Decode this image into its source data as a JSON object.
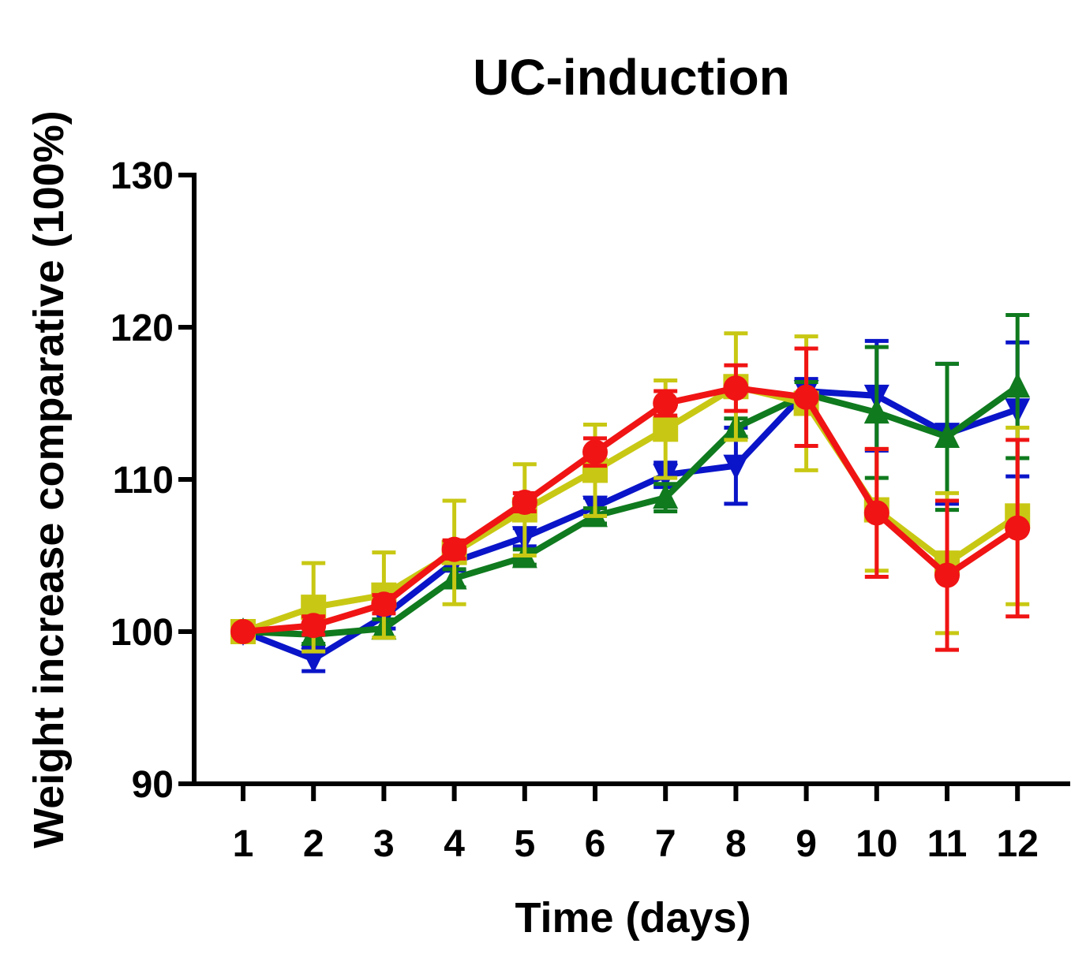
{
  "chart_data": {
    "type": "line",
    "title": "UC-induction",
    "xlabel": "Time (days)",
    "ylabel": "Weight increase comparative  (100%)",
    "x": [
      1,
      2,
      3,
      4,
      5,
      6,
      7,
      8,
      9,
      10,
      11,
      12
    ],
    "x_ticks": [
      "1",
      "2",
      "3",
      "4",
      "5",
      "6",
      "7",
      "8",
      "9",
      "10",
      "11",
      "12"
    ],
    "ylim": [
      90,
      130
    ],
    "y_ticks": [
      "90",
      "100",
      "110",
      "120",
      "130"
    ],
    "grid": false,
    "legend": false,
    "series": [
      {
        "color": "#0a14c8",
        "marker": "triangle-down",
        "values": [
          100,
          98.2,
          101.0,
          104.6,
          106.2,
          108.2,
          110.3,
          110.9,
          115.8,
          115.5,
          113.0,
          114.6
        ],
        "errors": [
          0.2,
          0.8,
          0.8,
          0.6,
          0.6,
          0.6,
          0.8,
          2.5,
          0.8,
          3.6,
          4.6,
          4.4
        ]
      },
      {
        "color": "#0f7a1e",
        "marker": "triangle-up",
        "values": [
          100,
          99.8,
          100.2,
          103.5,
          104.9,
          107.6,
          108.8,
          113.4,
          115.6,
          114.4,
          112.8,
          116.1
        ],
        "errors": [
          0.2,
          0.6,
          0.6,
          0.6,
          0.5,
          0.5,
          0.9,
          0.6,
          0.8,
          4.3,
          4.8,
          4.7
        ]
      },
      {
        "color": "#c8c814",
        "marker": "square",
        "values": [
          100,
          101.6,
          102.4,
          105.2,
          108.0,
          110.6,
          113.3,
          116.1,
          115.0,
          108.0,
          104.5,
          107.6
        ],
        "errors": [
          0.2,
          2.9,
          2.8,
          3.4,
          3.0,
          3.0,
          3.2,
          3.5,
          4.4,
          4.0,
          4.6,
          5.8
        ]
      },
      {
        "color": "#f01414",
        "marker": "circle",
        "values": [
          100,
          100.4,
          101.8,
          105.4,
          108.5,
          111.8,
          115.0,
          116.0,
          115.4,
          107.8,
          103.7,
          106.8
        ],
        "errors": [
          0.2,
          0.6,
          0.6,
          0.6,
          0.6,
          0.9,
          0.8,
          1.5,
          3.2,
          4.2,
          4.9,
          5.8
        ]
      }
    ]
  }
}
